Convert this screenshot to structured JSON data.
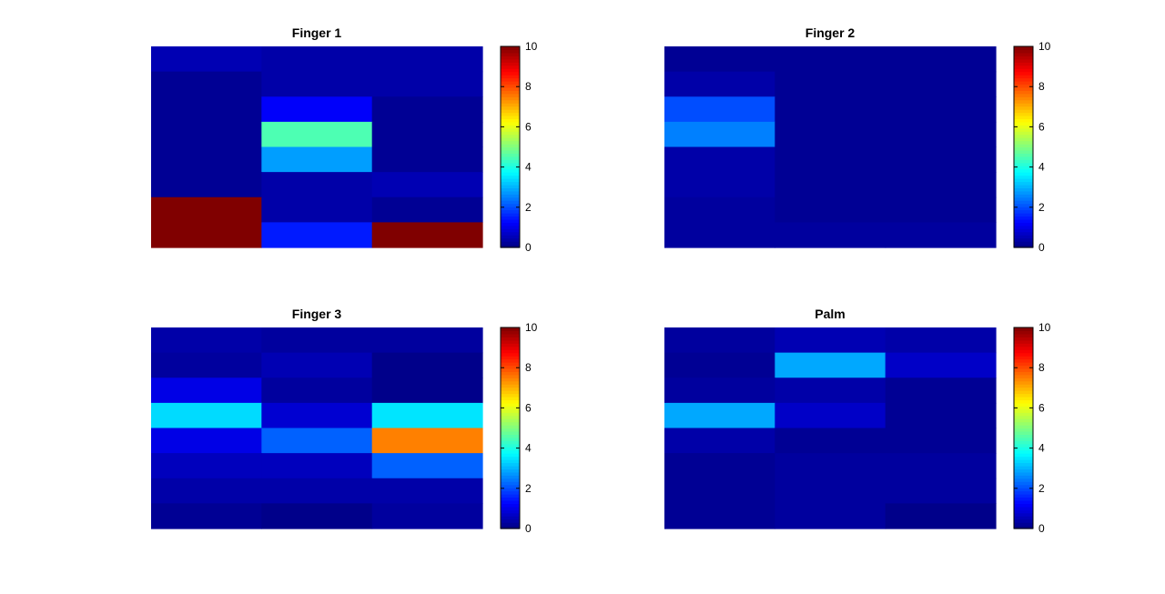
{
  "chart_data": [
    {
      "type": "heatmap",
      "title": "Finger 1",
      "values": [
        [
          0.5,
          0.4,
          0.4
        ],
        [
          0.2,
          0.4,
          0.4
        ],
        [
          0.2,
          1.2,
          0.2
        ],
        [
          0.2,
          4.5,
          0.2
        ],
        [
          0.2,
          2.8,
          0.2
        ],
        [
          0.2,
          0.4,
          0.5
        ],
        [
          10,
          0.4,
          0.2
        ],
        [
          10,
          1.5,
          10
        ]
      ],
      "colorbar": {
        "range": [
          0,
          10
        ],
        "ticks": [
          "0",
          "2",
          "4",
          "6",
          "8",
          "10"
        ],
        "colormap": "jet"
      }
    },
    {
      "type": "heatmap",
      "title": "Finger 2",
      "values": [
        [
          0.2,
          0.2,
          0.2
        ],
        [
          0.4,
          0.2,
          0.2
        ],
        [
          2.0,
          0.2,
          0.2
        ],
        [
          2.5,
          0.2,
          0.2
        ],
        [
          0.4,
          0.2,
          0.2
        ],
        [
          0.4,
          0.2,
          0.2
        ],
        [
          0.3,
          0.2,
          0.2
        ],
        [
          0.3,
          0.3,
          0.3
        ]
      ],
      "colorbar": {
        "range": [
          0,
          10
        ],
        "ticks": [
          "0",
          "2",
          "4",
          "6",
          "8",
          "10"
        ],
        "colormap": "jet"
      }
    },
    {
      "type": "heatmap",
      "title": "Finger 3",
      "values": [
        [
          0.4,
          0.3,
          0.3
        ],
        [
          0.3,
          0.5,
          0.1
        ],
        [
          1.0,
          0.3,
          0.1
        ],
        [
          3.4,
          0.8,
          3.5
        ],
        [
          1.0,
          2.2,
          7.5
        ],
        [
          0.6,
          0.6,
          2.2
        ],
        [
          0.4,
          0.4,
          0.4
        ],
        [
          0.2,
          0.1,
          0.3
        ]
      ],
      "colorbar": {
        "range": [
          0,
          10
        ],
        "ticks": [
          "0",
          "2",
          "4",
          "6",
          "8",
          "10"
        ],
        "colormap": "jet"
      }
    },
    {
      "type": "heatmap",
      "title": "Palm",
      "values": [
        [
          0.3,
          0.5,
          0.4
        ],
        [
          0.2,
          2.9,
          0.7
        ],
        [
          0.3,
          0.4,
          0.2
        ],
        [
          2.9,
          0.7,
          0.2
        ],
        [
          0.4,
          0.2,
          0.2
        ],
        [
          0.2,
          0.3,
          0.3
        ],
        [
          0.2,
          0.3,
          0.3
        ],
        [
          0.2,
          0.3,
          0.1
        ]
      ],
      "colorbar": {
        "range": [
          0,
          10
        ],
        "ticks": [
          "0",
          "2",
          "4",
          "6",
          "8",
          "10"
        ],
        "colormap": "jet"
      }
    }
  ]
}
